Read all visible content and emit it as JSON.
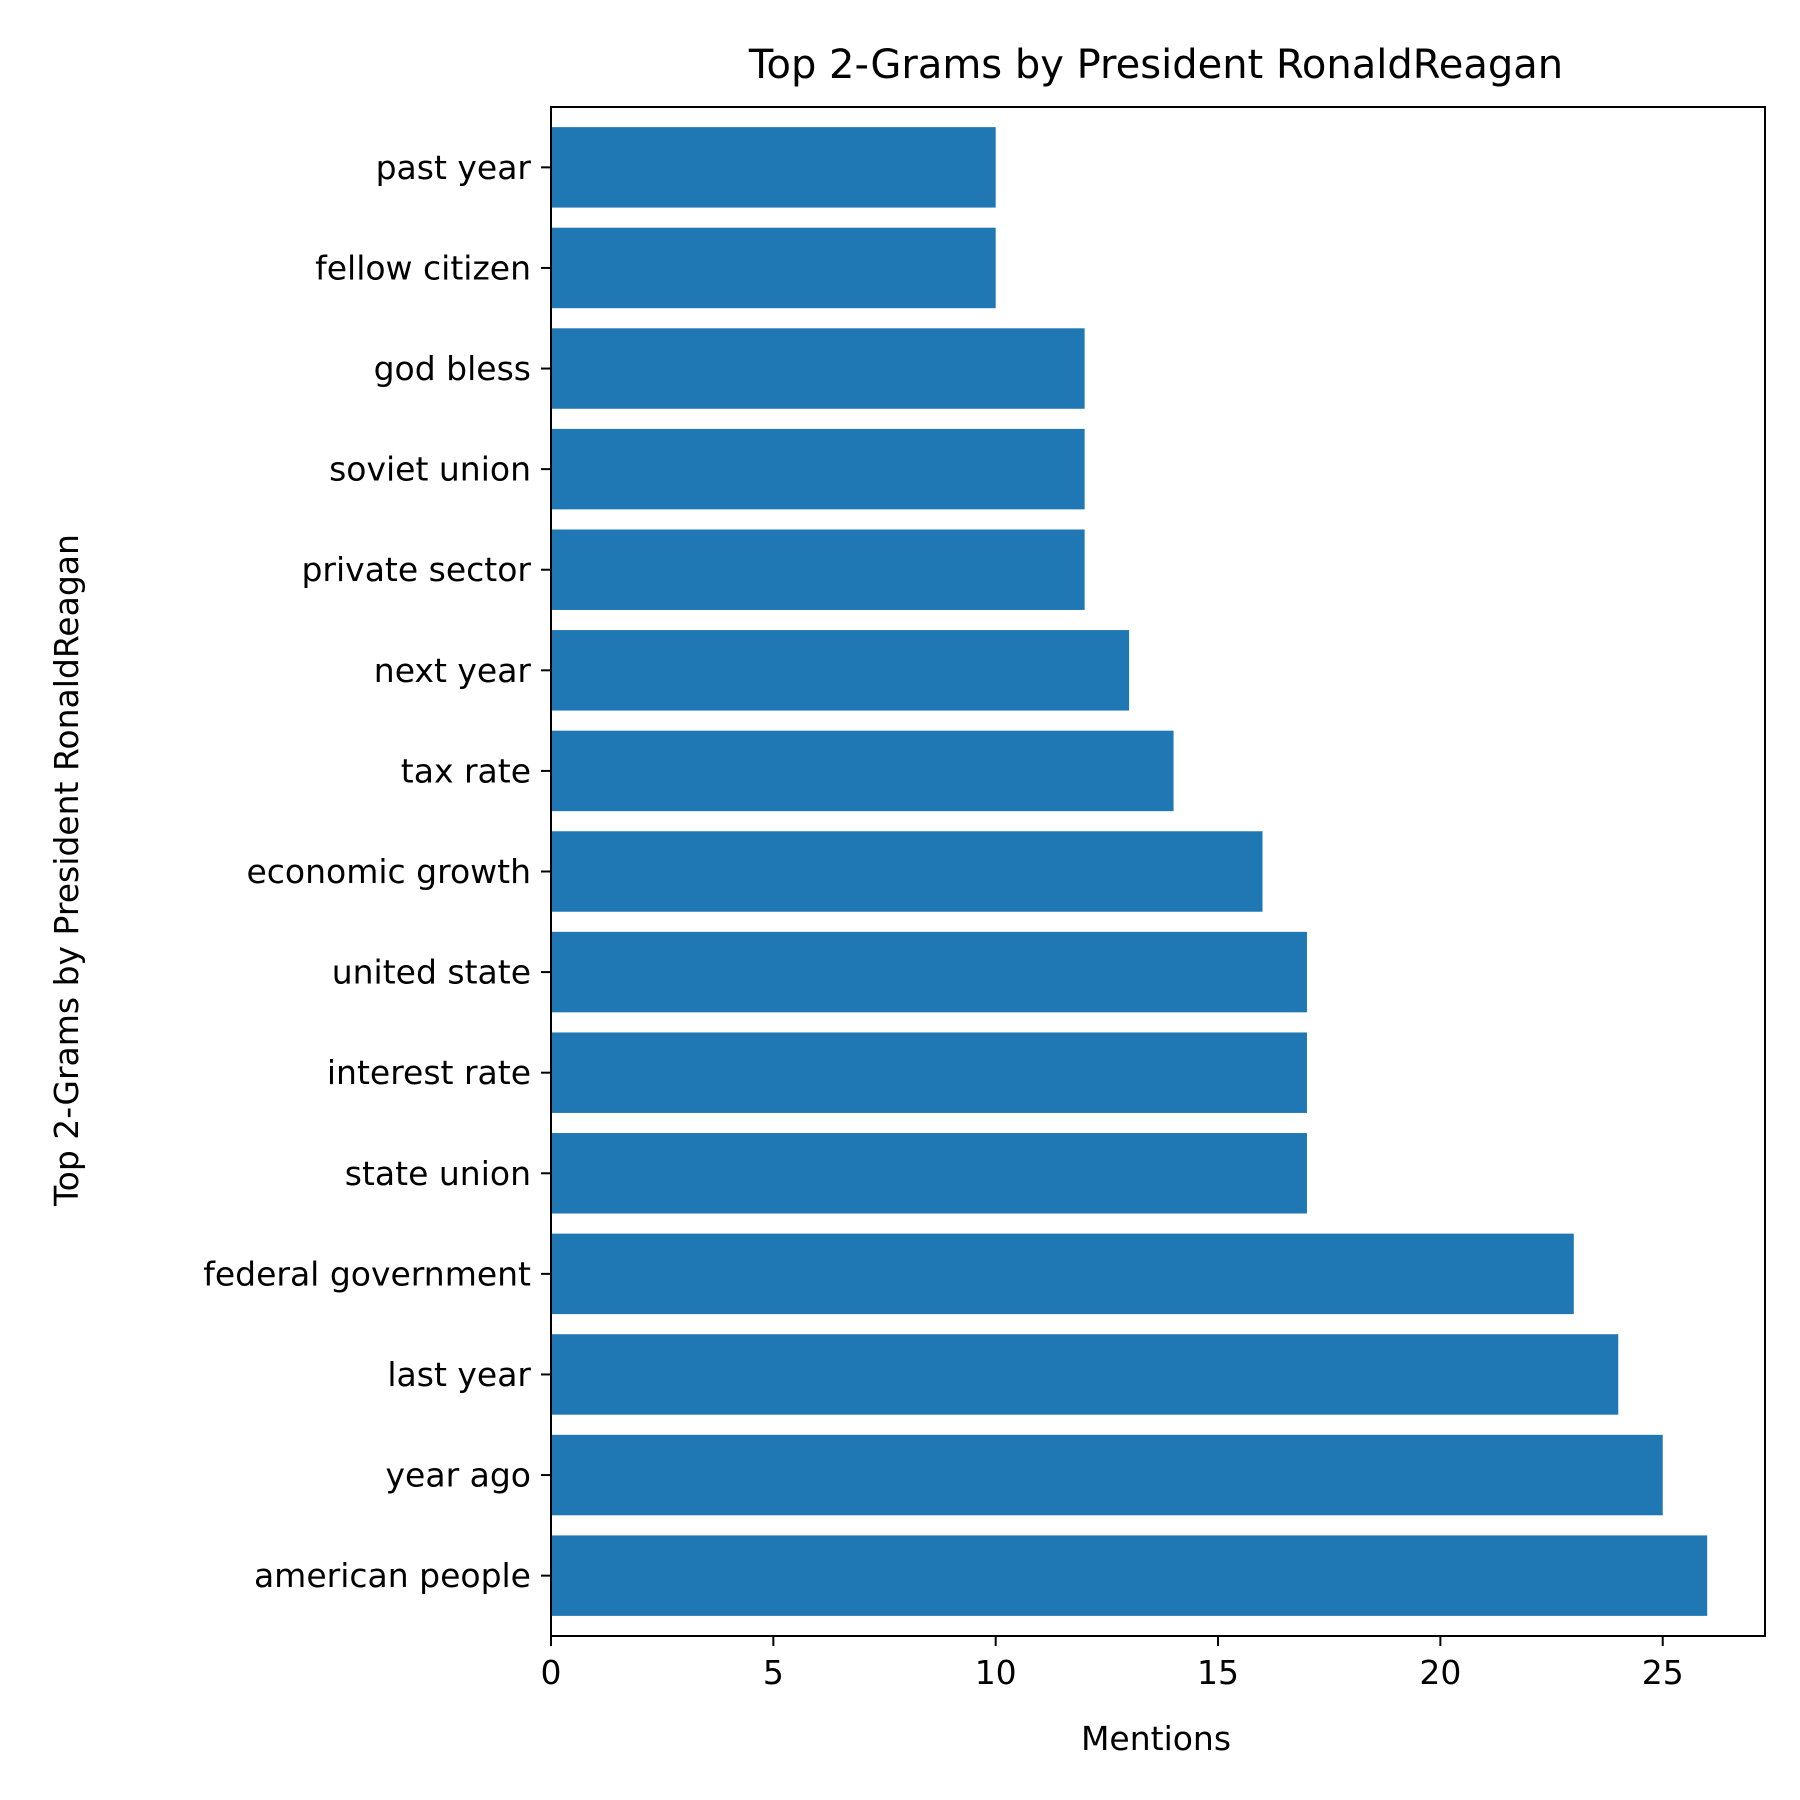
{
  "chart_data": {
    "type": "bar",
    "orientation": "horizontal",
    "title": "Top 2-Grams by President RonaldReagan",
    "xlabel": "Mentions",
    "ylabel": "Top 2-Grams by President RonaldReagan",
    "categories": [
      "american people",
      "year ago",
      "last year",
      "federal government",
      "state union",
      "interest rate",
      "united state",
      "economic growth",
      "tax rate",
      "next year",
      "private sector",
      "soviet union",
      "god bless",
      "fellow citizen",
      "past year"
    ],
    "values": [
      26,
      25,
      24,
      23,
      17,
      17,
      17,
      16,
      14,
      13,
      12,
      12,
      12,
      10,
      10
    ],
    "xlim": [
      0,
      27.3
    ],
    "xticks": [
      0,
      5,
      10,
      15,
      20,
      25
    ],
    "xtick_labels": [
      "0",
      "5",
      "10",
      "15",
      "20",
      "25"
    ],
    "bar_color": "#1f77b4",
    "grid": false,
    "legend": "none"
  }
}
